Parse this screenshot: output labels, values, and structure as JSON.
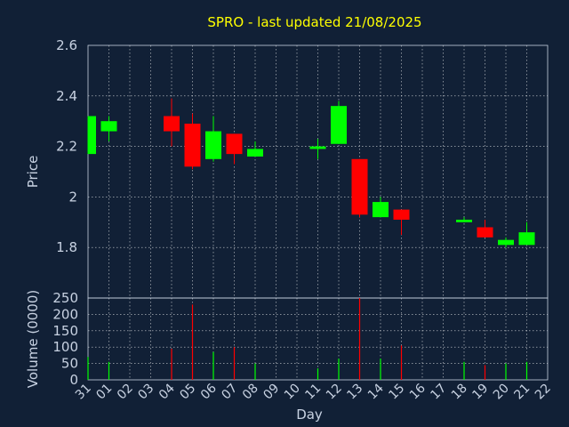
{
  "chart_data": {
    "type": "candlestick",
    "title": "SPRO - last updated 21/08/2025",
    "xlabel": "Day",
    "price_panel": {
      "ylabel": "Price",
      "ylim": [
        1.6,
        2.6
      ],
      "yticks": [
        "2.6",
        "2.4",
        "2.2",
        "2",
        "1.8"
      ],
      "grid": true
    },
    "volume_panel": {
      "ylabel": "Volume (0000)",
      "ylim": [
        0,
        250
      ],
      "yticks": [
        "250",
        "200",
        "150",
        "100",
        "50",
        "0"
      ],
      "grid": true
    },
    "x_ticks": [
      "31",
      "01",
      "02",
      "03",
      "04",
      "05",
      "06",
      "07",
      "08",
      "09",
      "10",
      "11",
      "12",
      "13",
      "14",
      "15",
      "16",
      "17",
      "18",
      "19",
      "20",
      "21",
      "22"
    ],
    "colors": {
      "up": "#00ff00",
      "down": "#ff0000",
      "background": "#112036",
      "grid": "#ffffff",
      "title": "#ffff00",
      "text": "#c8d2e2"
    },
    "candles": [
      {
        "x": 0,
        "open": 2.17,
        "high": 2.32,
        "low": 2.17,
        "close": 2.32,
        "volume": 70
      },
      {
        "x": 1,
        "open": 2.26,
        "high": 2.32,
        "low": 2.22,
        "close": 2.3,
        "volume": 55
      },
      {
        "x": 4,
        "open": 2.32,
        "high": 2.39,
        "low": 2.2,
        "close": 2.26,
        "volume": 95
      },
      {
        "x": 5,
        "open": 2.29,
        "high": 2.33,
        "low": 2.11,
        "close": 2.12,
        "volume": 230
      },
      {
        "x": 6,
        "open": 2.15,
        "high": 2.32,
        "low": 2.14,
        "close": 2.26,
        "volume": 85
      },
      {
        "x": 7,
        "open": 2.25,
        "high": 2.25,
        "low": 2.13,
        "close": 2.17,
        "volume": 100
      },
      {
        "x": 8,
        "open": 2.16,
        "high": 2.22,
        "low": 2.16,
        "close": 2.19,
        "volume": 50
      },
      {
        "x": 11,
        "open": 2.19,
        "high": 2.23,
        "low": 2.15,
        "close": 2.2,
        "volume": 35
      },
      {
        "x": 12,
        "open": 2.21,
        "high": 2.38,
        "low": 2.21,
        "close": 2.36,
        "volume": 65
      },
      {
        "x": 13,
        "open": 2.15,
        "high": 2.15,
        "low": 1.92,
        "close": 1.93,
        "volume": 250
      },
      {
        "x": 14,
        "open": 1.92,
        "high": 2.0,
        "low": 1.92,
        "close": 1.98,
        "volume": 65
      },
      {
        "x": 15,
        "open": 1.95,
        "high": 1.95,
        "low": 1.85,
        "close": 1.91,
        "volume": 105
      },
      {
        "x": 18,
        "open": 1.9,
        "high": 1.92,
        "low": 1.9,
        "close": 1.91,
        "volume": 55
      },
      {
        "x": 19,
        "open": 1.88,
        "high": 1.91,
        "low": 1.84,
        "close": 1.84,
        "volume": 45
      },
      {
        "x": 20,
        "open": 1.81,
        "high": 1.84,
        "low": 1.8,
        "close": 1.83,
        "volume": 50
      },
      {
        "x": 21,
        "open": 1.81,
        "high": 1.9,
        "low": 1.81,
        "close": 1.86,
        "volume": 55
      }
    ]
  }
}
